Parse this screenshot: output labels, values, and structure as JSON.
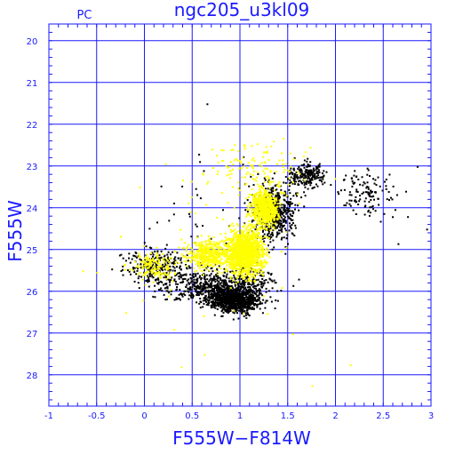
{
  "chart_data": {
    "type": "scatter",
    "title": "ngc205_u3kl09",
    "corner_label": "PC",
    "xlabel": "F555W−F814W",
    "ylabel": "F555W",
    "xlim": [
      -1,
      3
    ],
    "ylim": [
      28.75,
      19.6
    ],
    "y_inverted": true,
    "grid": true,
    "x_ticks": [
      -1,
      -0.5,
      0,
      0.5,
      1,
      1.5,
      2,
      2.5,
      3
    ],
    "x_tick_labels": [
      "-1",
      "-0.5",
      "0",
      "0.5",
      "1",
      "1.5",
      "2",
      "2.5",
      "3"
    ],
    "y_ticks": [
      20,
      21,
      22,
      23,
      24,
      25,
      26,
      27,
      28
    ],
    "y_tick_labels": [
      "20",
      "21",
      "22",
      "23",
      "24",
      "25",
      "26",
      "27",
      "28"
    ],
    "series": [
      {
        "color": "#000000",
        "marker": "dot",
        "regions": [
          {
            "points": 900,
            "x": [
              0.55,
              1.3
            ],
            "y": [
              25.8,
              26.6
            ]
          },
          {
            "points": 650,
            "x": [
              0.0,
              1.55
            ],
            "y": [
              25.3,
              26.4
            ]
          },
          {
            "points": 250,
            "x": [
              -0.35,
              0.6
            ],
            "y": [
              24.8,
              26.0
            ]
          },
          {
            "points": 500,
            "x": [
              1.05,
              1.65
            ],
            "y": [
              23.2,
              25.0
            ]
          },
          {
            "points": 220,
            "x": [
              1.45,
              1.95
            ],
            "y": [
              22.8,
              23.6
            ]
          },
          {
            "points": 120,
            "x": [
              1.9,
              2.75
            ],
            "y": [
              22.9,
              24.4
            ]
          },
          {
            "points": 60,
            "x": [
              -0.3,
              2.0
            ],
            "y": [
              22.2,
              26.7
            ]
          }
        ],
        "individual_points": [
          {
            "x": 0.65,
            "y": 21.5
          },
          {
            "x": 2.85,
            "y": 23.0
          },
          {
            "x": 2.55,
            "y": 23.6
          },
          {
            "x": 2.75,
            "y": 24.2
          },
          {
            "x": 2.95,
            "y": 24.5
          },
          {
            "x": 2.65,
            "y": 24.85
          },
          {
            "x": 2.4,
            "y": 23.4
          }
        ]
      },
      {
        "color": "#ffff00",
        "marker": "dot",
        "regions": [
          {
            "points": 1300,
            "x": [
              0.8,
              1.3
            ],
            "y": [
              24.3,
              25.8
            ]
          },
          {
            "points": 650,
            "x": [
              1.05,
              1.45
            ],
            "y": [
              23.4,
              24.6
            ]
          },
          {
            "points": 450,
            "x": [
              0.35,
              1.0
            ],
            "y": [
              24.6,
              25.6
            ]
          },
          {
            "points": 160,
            "x": [
              -0.2,
              0.4
            ],
            "y": [
              24.9,
              25.9
            ]
          },
          {
            "points": 140,
            "x": [
              0.5,
              1.9
            ],
            "y": [
              22.2,
              24.0
            ]
          },
          {
            "points": 60,
            "x": [
              -0.5,
              2.3
            ],
            "y": [
              21.8,
              27.6
            ]
          }
        ],
        "individual_points": [
          {
            "x": 0.9,
            "y": 22.6
          },
          {
            "x": 1.0,
            "y": 22.9
          },
          {
            "x": 2.15,
            "y": 27.75
          },
          {
            "x": 0.62,
            "y": 27.5
          },
          {
            "x": 0.38,
            "y": 27.8
          },
          {
            "x": -0.2,
            "y": 26.5
          },
          {
            "x": -0.65,
            "y": 25.5
          },
          {
            "x": 1.75,
            "y": 28.25
          },
          {
            "x": 0.3,
            "y": 26.9
          }
        ]
      }
    ]
  }
}
